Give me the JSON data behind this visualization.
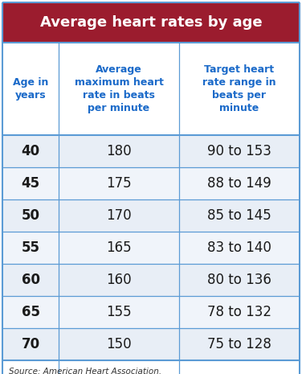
{
  "title": "Average heart rates by age",
  "title_bg_color": "#9B1C2E",
  "title_text_color": "#FFFFFF",
  "header_text_color": "#1B6AC9",
  "header_bg_color": "#FFFFFF",
  "col1_header": "Age in\nyears",
  "col2_header": "Average\nmaximum heart\nrate in beats\nper minute",
  "col3_header": "Target heart\nrate range in\nbeats per\nminute",
  "rows": [
    [
      "40",
      "180",
      "90 to 153"
    ],
    [
      "45",
      "175",
      "88 to 149"
    ],
    [
      "50",
      "170",
      "85 to 145"
    ],
    [
      "55",
      "165",
      "83 to 140"
    ],
    [
      "60",
      "160",
      "80 to 136"
    ],
    [
      "65",
      "155",
      "78 to 132"
    ],
    [
      "70",
      "150",
      "75 to 128"
    ]
  ],
  "row_bg_light": "#E8EEF6",
  "row_bg_white": "#F0F4FA",
  "row_text_color": "#1A1A1A",
  "grid_color": "#5B9BD5",
  "source_text": "Source: American Heart Association.",
  "source_color": "#333333"
}
